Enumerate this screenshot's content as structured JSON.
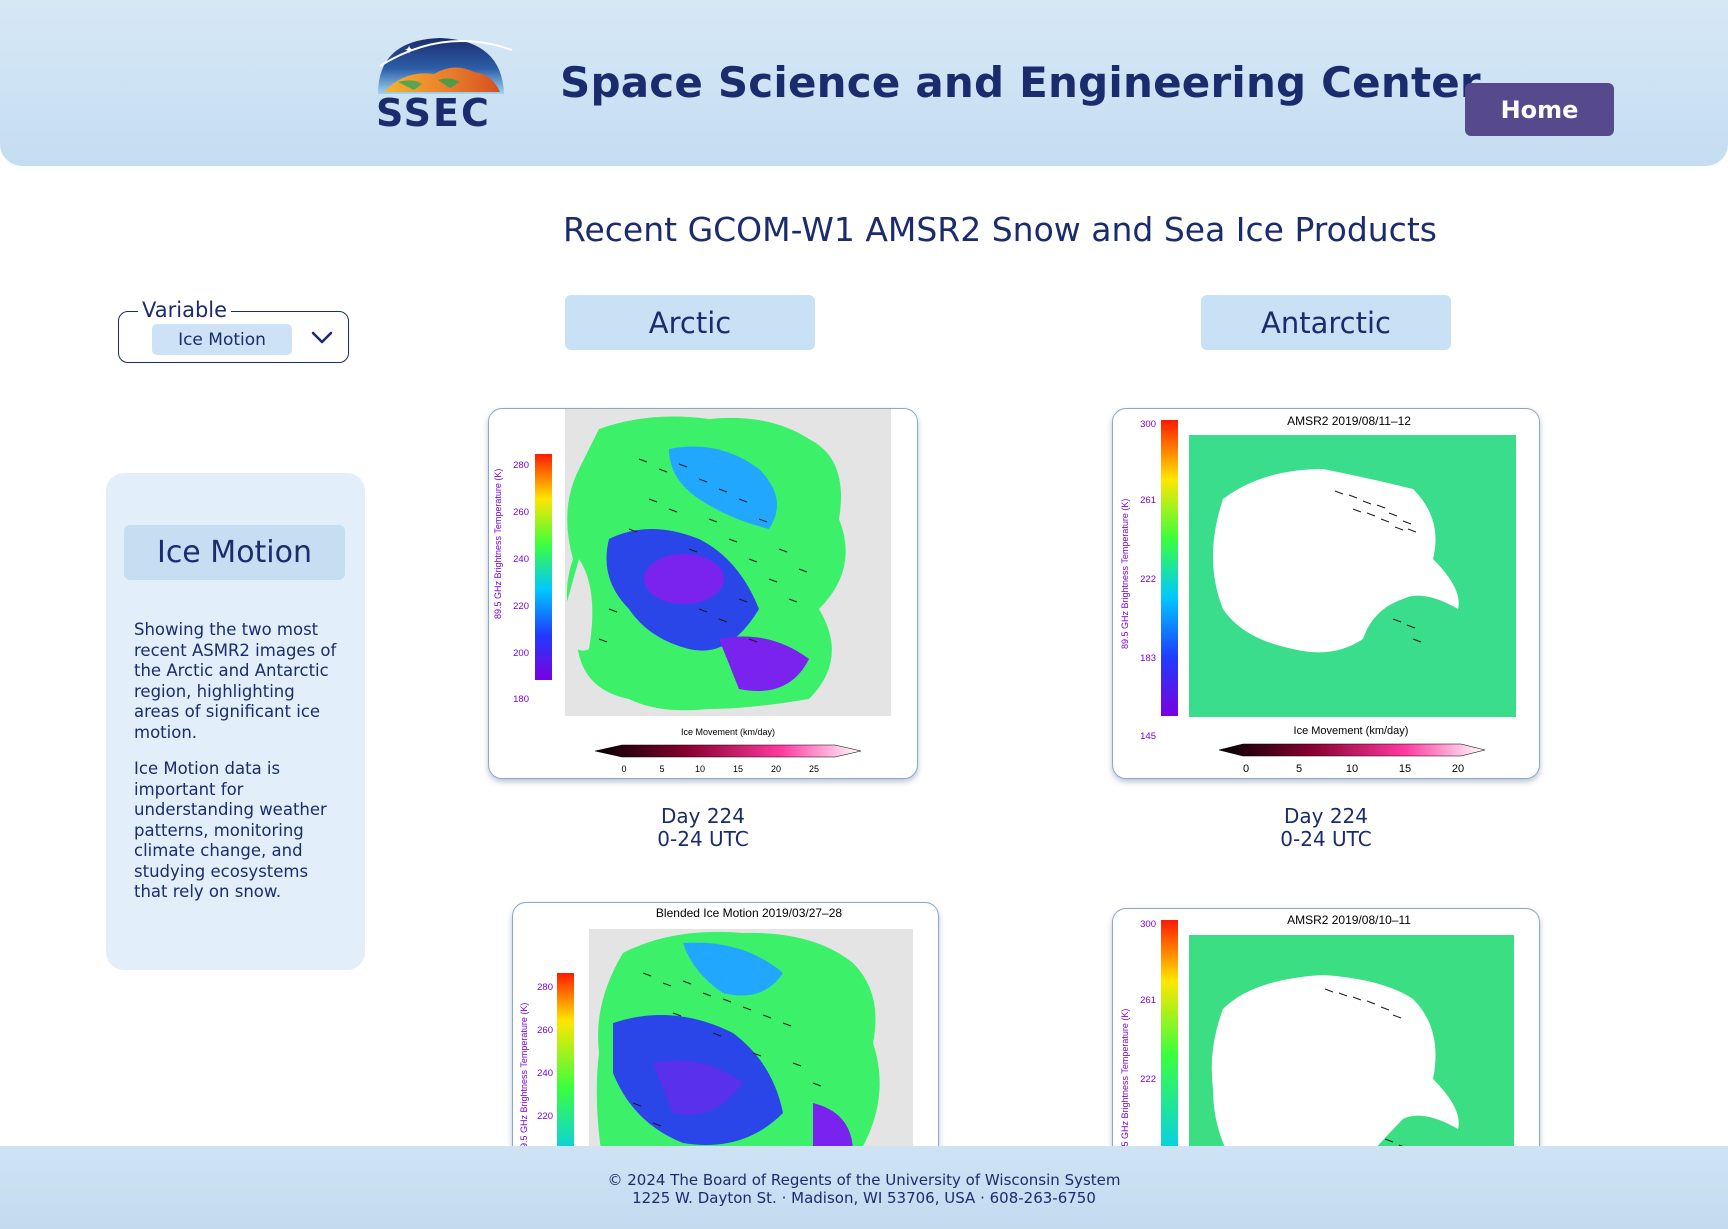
{
  "header": {
    "logo_text": "SSEC",
    "title": "Space Science and Engineering Center",
    "home_label": "Home"
  },
  "page": {
    "heading": "Recent GCOM-W1 AMSR2 Snow and Sea Ice Products"
  },
  "variable_selector": {
    "legend": "Variable",
    "selected": "Ice Motion"
  },
  "info_panel": {
    "title": "Ice Motion",
    "paragraph1": "Showing the two most recent ASMR2 images of the Arctic and Antarctic region, highlighting areas of significant ice motion.",
    "paragraph2": "Ice Motion data is important for understanding weather patterns, monitoring climate change, and studying ecosystems that rely on snow."
  },
  "regions": {
    "arctic_label": "Arctic",
    "antarctic_label": "Antarctic"
  },
  "images": [
    {
      "region": "Arctic",
      "title": "",
      "cbar_label": "89.5 GHz Brightness Temperature (K)",
      "cbar_ticks": [
        "280",
        "260",
        "240",
        "220",
        "200",
        "180"
      ],
      "motion_label": "Ice Movement (km/day)",
      "motion_ticks": [
        "0",
        "5",
        "10",
        "15",
        "20",
        "25"
      ],
      "caption_day": "Day 224",
      "caption_time": "0-24 UTC"
    },
    {
      "region": "Antarctic",
      "title": "AMSR2  2019/08/11–12",
      "cbar_label": "89.5 GHz Brightness Temperature (K)",
      "cbar_ticks": [
        "300",
        "261",
        "222",
        "183",
        "145"
      ],
      "motion_label": "Ice Movement (km/day)",
      "motion_ticks": [
        "0",
        "5",
        "10",
        "15",
        "20"
      ],
      "caption_day": "Day 224",
      "caption_time": "0-24 UTC"
    },
    {
      "region": "Arctic",
      "title": "Blended Ice Motion  2019/03/27–28",
      "cbar_label": "89.5 GHz Brightness Temperature (K)",
      "cbar_ticks": [
        "280",
        "260",
        "240",
        "220"
      ]
    },
    {
      "region": "Antarctic",
      "title": "AMSR2  2019/08/10–11",
      "cbar_label": "89.5 GHz Brightness Temperature (K)",
      "cbar_ticks": [
        "300",
        "261",
        "222"
      ]
    }
  ],
  "footer": {
    "line1": "© 2024 The Board of Regents of the University of Wisconsin System",
    "line2": "1225 W. Dayton St. · Madison, WI 53706, USA · 608-263-6750"
  },
  "colors": {
    "navy": "#1b2c6e",
    "home_button": "#574a8c",
    "header_bg": "#d6e8f6",
    "tab_bg": "#c9e1f4",
    "panel_bg": "#e2eef9"
  }
}
